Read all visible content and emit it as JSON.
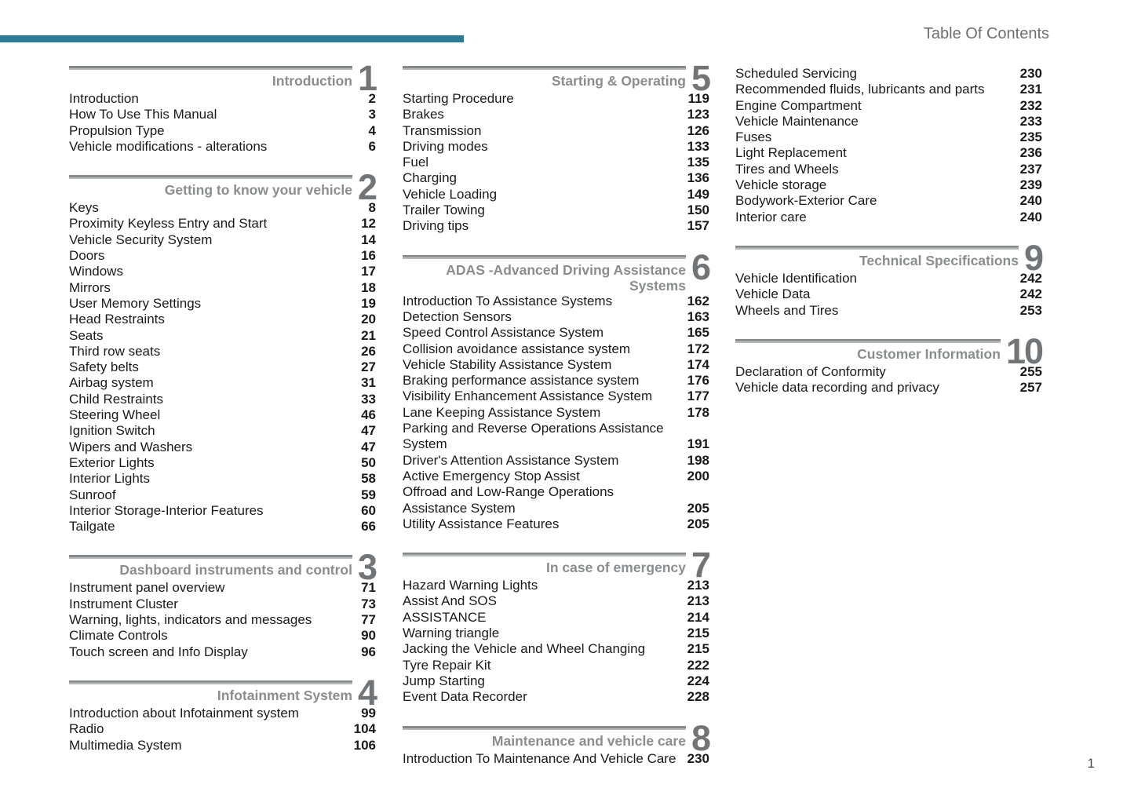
{
  "page": {
    "header_title": "Table Of Contents",
    "page_number": "1",
    "accent_color": "#2b7b97",
    "section_title_color": "#8a8d8f",
    "section_number_color": "#727577"
  },
  "columns": [
    {
      "sections": [
        {
          "num": "1",
          "title": "Introduction",
          "entries": [
            {
              "label": "Introduction",
              "page": "2"
            },
            {
              "label": "How To Use This Manual",
              "page": "3"
            },
            {
              "label": "Propulsion Type",
              "page": "4"
            },
            {
              "label": "Vehicle modifications - alterations",
              "page": "6"
            }
          ]
        },
        {
          "num": "2",
          "title": "Getting to know your vehicle",
          "entries": [
            {
              "label": "Keys",
              "page": "8"
            },
            {
              "label": "Proximity Keyless Entry and Start",
              "page": "12"
            },
            {
              "label": "Vehicle Security System",
              "page": "14"
            },
            {
              "label": "Doors",
              "page": "16"
            },
            {
              "label": "Windows",
              "page": "17"
            },
            {
              "label": "Mirrors",
              "page": "18"
            },
            {
              "label": "User Memory Settings",
              "page": "19"
            },
            {
              "label": "Head Restraints",
              "page": "20"
            },
            {
              "label": "Seats",
              "page": "21"
            },
            {
              "label": "Third row seats",
              "page": "26"
            },
            {
              "label": "Safety belts",
              "page": "27"
            },
            {
              "label": "Airbag system",
              "page": "31"
            },
            {
              "label": "Child Restraints",
              "page": "33"
            },
            {
              "label": "Steering Wheel",
              "page": "46"
            },
            {
              "label": "Ignition Switch",
              "page": "47"
            },
            {
              "label": "Wipers and Washers",
              "page": "47"
            },
            {
              "label": "Exterior Lights",
              "page": "50"
            },
            {
              "label": "Interior Lights",
              "page": "58"
            },
            {
              "label": "Sunroof",
              "page": "59"
            },
            {
              "label": "Interior Storage-Interior Features",
              "page": "60"
            },
            {
              "label": "Tailgate",
              "page": "66"
            }
          ]
        },
        {
          "num": "3",
          "title": "Dashboard instruments and control",
          "entries": [
            {
              "label": "Instrument panel overview",
              "page": "71"
            },
            {
              "label": "Instrument Cluster",
              "page": "73"
            },
            {
              "label": "Warning, lights, indicators and messages",
              "page": "77"
            },
            {
              "label": "Climate Controls",
              "page": "90"
            },
            {
              "label": "Touch screen and Info Display",
              "page": "96"
            }
          ]
        },
        {
          "num": "4",
          "title": "Infotainment System",
          "entries": [
            {
              "label": "Introduction about Infotainment system",
              "page": "99"
            },
            {
              "label": "Radio",
              "page": "104"
            },
            {
              "label": "Multimedia System",
              "page": "106"
            }
          ]
        }
      ]
    },
    {
      "sections": [
        {
          "num": "5",
          "title": "Starting & Operating",
          "entries": [
            {
              "label": "Starting Procedure",
              "page": "119"
            },
            {
              "label": "Brakes",
              "page": "123"
            },
            {
              "label": "Transmission",
              "page": "126"
            },
            {
              "label": "Driving modes",
              "page": "133"
            },
            {
              "label": "Fuel",
              "page": "135"
            },
            {
              "label": "Charging",
              "page": "136"
            },
            {
              "label": "Vehicle Loading",
              "page": "149"
            },
            {
              "label": "Trailer Towing",
              "page": "150"
            },
            {
              "label": "Driving tips",
              "page": "157"
            }
          ]
        },
        {
          "num": "6",
          "title": "ADAS -Advanced Driving Assistance\nSystems",
          "entries": [
            {
              "label": "Introduction To Assistance Systems",
              "page": "162"
            },
            {
              "label": "Detection Sensors",
              "page": "163"
            },
            {
              "label": "Speed Control Assistance System",
              "page": "165"
            },
            {
              "label": "Collision avoidance assistance system",
              "page": "172"
            },
            {
              "label": "Vehicle Stability Assistance System",
              "page": "174"
            },
            {
              "label": "Braking performance assistance system",
              "page": "176"
            },
            {
              "label": "Visibility Enhancement Assistance System",
              "page": "177"
            },
            {
              "label": "Lane Keeping Assistance System",
              "page": "178"
            },
            {
              "label": "Parking and Reverse Operations Assistance\nSystem",
              "page": "191"
            },
            {
              "label": "Driver's Attention Assistance System",
              "page": "198"
            },
            {
              "label": "Active Emergency Stop Assist",
              "page": "200"
            },
            {
              "label": "Offroad and Low-Range Operations\nAssistance System",
              "page": "205"
            },
            {
              "label": "Utility Assistance Features",
              "page": "205"
            }
          ]
        },
        {
          "num": "7",
          "title": "In case of emergency",
          "entries": [
            {
              "label": "Hazard Warning Lights",
              "page": "213"
            },
            {
              "label": "Assist And SOS",
              "page": "213"
            },
            {
              "label": "ASSISTANCE",
              "page": "214"
            },
            {
              "label": "Warning triangle",
              "page": "215"
            },
            {
              "label": "Jacking the Vehicle and Wheel Changing",
              "page": "215"
            },
            {
              "label": "Tyre Repair Kit",
              "page": "222"
            },
            {
              "label": "Jump Starting",
              "page": "224"
            },
            {
              "label": "Event Data Recorder",
              "page": "228"
            }
          ]
        },
        {
          "num": "8",
          "title": "Maintenance and vehicle care",
          "entries": [
            {
              "label": "Introduction To Maintenance And Vehicle Care",
              "page": "230"
            }
          ]
        }
      ]
    },
    {
      "sections": [
        {
          "num": null,
          "title": null,
          "entries": [
            {
              "label": "Scheduled Servicing",
              "page": "230"
            },
            {
              "label": "Recommended fluids, lubricants and parts",
              "page": "231"
            },
            {
              "label": "Engine Compartment",
              "page": "232"
            },
            {
              "label": "Vehicle Maintenance",
              "page": "233"
            },
            {
              "label": "Fuses",
              "page": "235"
            },
            {
              "label": "Light Replacement",
              "page": "236"
            },
            {
              "label": "Tires and Wheels",
              "page": "237"
            },
            {
              "label": "Vehicle storage",
              "page": "239"
            },
            {
              "label": "Bodywork-Exterior Care",
              "page": "240"
            },
            {
              "label": "Interior care",
              "page": "240"
            }
          ]
        },
        {
          "num": "9",
          "title": "Technical Specifications",
          "entries": [
            {
              "label": "Vehicle Identification",
              "page": "242"
            },
            {
              "label": "Vehicle Data",
              "page": "242"
            },
            {
              "label": "Wheels and Tires",
              "page": "253"
            }
          ]
        },
        {
          "num": "10",
          "title": "Customer Information",
          "entries": [
            {
              "label": "Declaration of Conformity",
              "page": "255"
            },
            {
              "label": "Vehicle data recording and privacy",
              "page": "257"
            }
          ]
        }
      ]
    }
  ]
}
